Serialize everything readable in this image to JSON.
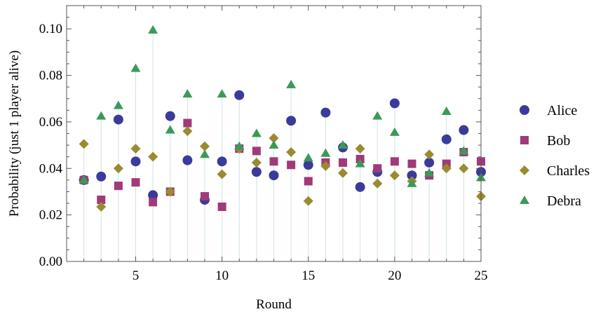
{
  "chart_data": {
    "type": "scatter",
    "title": "",
    "xlabel": "Round",
    "ylabel": "Probability (just 1 player alive)",
    "xlim": [
      1,
      25
    ],
    "ylim": [
      0.0,
      0.11
    ],
    "xticks": [
      5,
      10,
      15,
      20,
      25
    ],
    "xtick_labels": [
      "5",
      "10",
      "15",
      "20",
      "25"
    ],
    "yticks": [
      0.0,
      0.02,
      0.04,
      0.06,
      0.08,
      0.1
    ],
    "ytick_labels": [
      "0.00",
      "0.02",
      "0.04",
      "0.06",
      "0.08",
      "0.10"
    ],
    "grid": false,
    "drop_lines": true,
    "legend_position": "right",
    "x": [
      2,
      3,
      4,
      5,
      6,
      7,
      8,
      9,
      10,
      11,
      12,
      13,
      14,
      15,
      16,
      17,
      18,
      19,
      20,
      21,
      22,
      23,
      24,
      25
    ],
    "series": [
      {
        "name": "Alice",
        "marker": "circle",
        "color": "#3b3b9a",
        "values": [
          0.035,
          0.0365,
          0.061,
          0.043,
          0.0285,
          0.0625,
          0.0435,
          0.0265,
          0.043,
          0.0715,
          0.0385,
          0.037,
          0.0605,
          0.0415,
          0.064,
          0.049,
          0.032,
          0.0385,
          0.068,
          0.037,
          0.0425,
          0.0525,
          0.0565,
          0.0385
        ]
      },
      {
        "name": "Bob",
        "marker": "square",
        "color": "#a03a78",
        "values": [
          0.035,
          0.0265,
          0.0325,
          0.034,
          0.0255,
          0.03,
          0.0595,
          0.028,
          0.0235,
          0.0485,
          0.0475,
          0.043,
          0.0415,
          0.0345,
          0.0425,
          0.0425,
          0.044,
          0.04,
          0.043,
          0.042,
          0.037,
          0.042,
          0.047,
          0.043
        ]
      },
      {
        "name": "Charles",
        "marker": "diamond",
        "color": "#9a8a30",
        "values": [
          0.0505,
          0.0235,
          0.04,
          0.0485,
          0.045,
          0.03,
          0.056,
          0.0495,
          0.0375,
          0.0485,
          0.0425,
          0.053,
          0.047,
          0.026,
          0.041,
          0.038,
          0.0485,
          0.0335,
          0.037,
          0.0345,
          0.046,
          0.04,
          0.04,
          0.028
        ]
      },
      {
        "name": "Debra",
        "marker": "triangle",
        "color": "#3a9a58",
        "values": [
          0.035,
          0.0625,
          0.067,
          0.083,
          0.0995,
          0.0565,
          0.072,
          0.046,
          0.072,
          0.0495,
          0.055,
          0.05,
          0.076,
          0.0445,
          0.0465,
          0.05,
          0.042,
          0.0625,
          0.0555,
          0.0335,
          0.038,
          0.0645,
          0.0475,
          0.036
        ]
      }
    ]
  }
}
